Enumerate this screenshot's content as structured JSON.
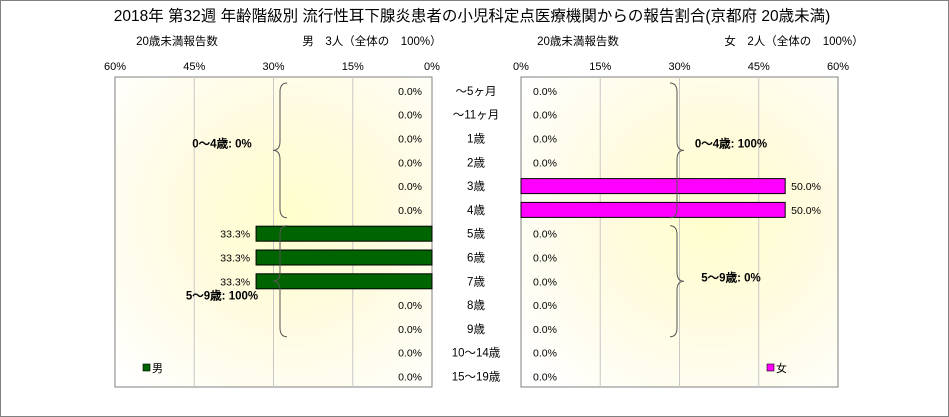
{
  "title": "2018年 第32週 年齢階級別 流行性耳下腺炎患者の小児科定点医療機関からの報告割合(京都府 20歳未満)",
  "chart_data": {
    "type": "bar",
    "categories": [
      "～5ヶ月",
      "～11ヶ月",
      "1歳",
      "2歳",
      "3歳",
      "4歳",
      "5歳",
      "6歳",
      "7歳",
      "8歳",
      "9歳",
      "10～14歳",
      "15～19歳"
    ],
    "xlim": [
      0,
      60
    ],
    "ticks": [
      "0%",
      "15%",
      "30%",
      "45%",
      "60%"
    ],
    "value_suffix": "%",
    "left_panel": {
      "caption": "20歳未満報告数",
      "header": "男　3人（全体の　100%）",
      "legend": "男",
      "color": "#006400",
      "values": [
        0.0,
        0.0,
        0.0,
        0.0,
        0.0,
        0.0,
        33.3,
        33.3,
        33.3,
        0.0,
        0.0,
        0.0,
        0.0
      ],
      "brackets": [
        {
          "from": 0,
          "to": 5,
          "label": "0～4歳: 0%"
        },
        {
          "from": 6,
          "to": 10,
          "label": "5～9歳: 100%"
        }
      ]
    },
    "right_panel": {
      "caption": "20歳未満報告数",
      "header": "女　2人（全体の　100%）",
      "legend": "女",
      "color": "#ff00ff",
      "values": [
        0.0,
        0.0,
        0.0,
        0.0,
        50.0,
        50.0,
        0.0,
        0.0,
        0.0,
        0.0,
        0.0,
        0.0,
        0.0
      ],
      "brackets": [
        {
          "from": 0,
          "to": 5,
          "label": "0～4歳: 100%"
        },
        {
          "from": 6,
          "to": 10,
          "label": "5～9歳: 0%"
        }
      ]
    }
  }
}
